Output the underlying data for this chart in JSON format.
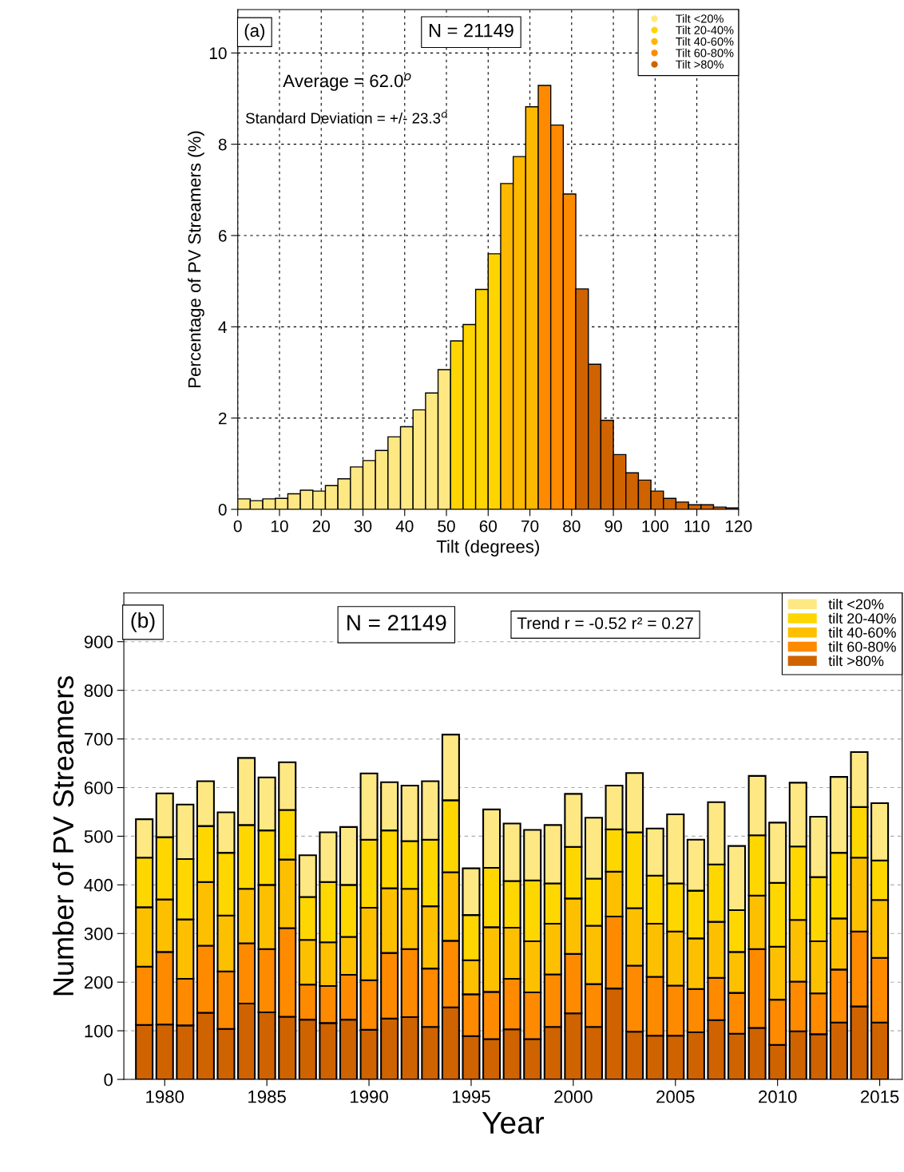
{
  "chart_data": [
    {
      "type": "histogram",
      "xlabel": "Tilt (degrees)",
      "ylabel": "Percentage of PV Streamers (%)",
      "bins": [
        0,
        3,
        6,
        9,
        12,
        15,
        18,
        21,
        24,
        27,
        30,
        33,
        36,
        39,
        42,
        45,
        48,
        51,
        54,
        57,
        60,
        63,
        66,
        69,
        72,
        75,
        78,
        81,
        84,
        87,
        90,
        93,
        96,
        99,
        102,
        105,
        108,
        111,
        114,
        117,
        120
      ],
      "series": [
        {
          "name": "Tilt <20%",
          "color": "#fee883",
          "values": [
            0.23,
            0.19,
            0.23,
            0.24,
            0.34,
            0.42,
            0.4,
            0.52,
            0.67,
            0.93,
            1.07,
            1.29,
            1.59,
            1.81,
            2.18,
            2.55,
            3.06,
            null,
            null,
            null,
            null,
            null,
            null,
            null,
            null,
            null,
            null,
            null,
            null,
            null,
            null,
            null,
            null,
            null,
            null,
            null,
            null,
            null,
            null,
            null
          ]
        },
        {
          "name": "Tilt 20-40%",
          "color": "#fed500",
          "values": [
            null,
            null,
            null,
            null,
            null,
            null,
            null,
            null,
            null,
            null,
            null,
            null,
            null,
            null,
            null,
            null,
            null,
            3.69,
            4.05,
            4.82,
            5.6,
            null,
            null,
            null,
            null,
            null,
            null,
            null,
            null,
            null,
            null,
            null,
            null,
            null,
            null,
            null,
            null,
            null,
            null,
            null
          ]
        },
        {
          "name": "Tilt 40-60%",
          "color": "#fdb800",
          "values": [
            null,
            null,
            null,
            null,
            null,
            null,
            null,
            null,
            null,
            null,
            null,
            null,
            null,
            null,
            null,
            null,
            null,
            null,
            null,
            null,
            null,
            7.14,
            7.73,
            8.82,
            null,
            null,
            null,
            null,
            null,
            null,
            null,
            null,
            null,
            null,
            null,
            null,
            null,
            null,
            null,
            null
          ]
        },
        {
          "name": "Tilt 60-80%",
          "color": "#fe8a00",
          "values": [
            null,
            null,
            null,
            null,
            null,
            null,
            null,
            null,
            null,
            null,
            null,
            null,
            null,
            null,
            null,
            null,
            null,
            null,
            null,
            null,
            null,
            null,
            null,
            null,
            9.29,
            8.42,
            6.91,
            null,
            null,
            null,
            null,
            null,
            null,
            null,
            null,
            null,
            null,
            null,
            null,
            null
          ]
        },
        {
          "name": "Tilt >80%",
          "color": "#cf6300",
          "values": [
            null,
            null,
            null,
            null,
            null,
            null,
            null,
            null,
            null,
            null,
            null,
            null,
            null,
            null,
            null,
            null,
            null,
            null,
            null,
            null,
            null,
            null,
            null,
            null,
            null,
            null,
            null,
            4.83,
            3.18,
            1.95,
            1.2,
            0.8,
            0.64,
            0.4,
            0.24,
            0.16,
            0.1,
            0.1,
            0.05,
            0.03
          ]
        }
      ],
      "xlim": [
        0,
        120
      ],
      "xticks": [
        0,
        10,
        20,
        30,
        40,
        50,
        60,
        70,
        80,
        90,
        100,
        110,
        120
      ],
      "ylim": [
        0,
        10.95
      ],
      "yticks": [
        0,
        2,
        4,
        6,
        8,
        10
      ],
      "grid": true,
      "legend": "top right",
      "annotations": [
        "(a)",
        "N = 21149",
        "Average = 62.0$^{o}$",
        "Standard Deviation = +/- 23.3$^{o}$"
      ]
    },
    {
      "type": "bar",
      "stacked": true,
      "xlabel": "Year",
      "ylabel": "Number of PV Streamers",
      "x": [
        1979,
        1980,
        1981,
        1982,
        1983,
        1984,
        1985,
        1986,
        1987,
        1988,
        1989,
        1990,
        1991,
        1992,
        1993,
        1994,
        1995,
        1996,
        1997,
        1998,
        1999,
        2000,
        2001,
        2002,
        2003,
        2004,
        2005,
        2006,
        2007,
        2008,
        2009,
        2010,
        2011,
        2012,
        2013,
        2014,
        2015
      ],
      "series": [
        {
          "name": "tilt >80%",
          "color": "#cf6300",
          "values": [
            112,
            113,
            111,
            137,
            104,
            156,
            138,
            129,
            123,
            116,
            123,
            102,
            125,
            128,
            108,
            148,
            89,
            83,
            103,
            83,
            108,
            136,
            108,
            187,
            98,
            90,
            90,
            97,
            122,
            94,
            106,
            71,
            99,
            93,
            117,
            150,
            117
          ]
        },
        {
          "name": "tilt 60-80%",
          "color": "#fe8a00",
          "values": [
            120,
            149,
            96,
            138,
            118,
            124,
            130,
            182,
            72,
            76,
            92,
            102,
            135,
            140,
            120,
            137,
            86,
            97,
            104,
            96,
            108,
            122,
            88,
            148,
            136,
            121,
            103,
            89,
            87,
            84,
            162,
            93,
            102,
            84,
            109,
            154,
            133
          ]
        },
        {
          "name": "tilt 40-60%",
          "color": "#fdc000",
          "values": [
            122,
            108,
            122,
            131,
            115,
            112,
            132,
            141,
            92,
            90,
            78,
            149,
            133,
            124,
            128,
            141,
            70,
            133,
            105,
            105,
            104,
            114,
            120,
            92,
            118,
            109,
            111,
            104,
            115,
            84,
            110,
            109,
            127,
            107,
            105,
            152,
            119
          ]
        },
        {
          "name": "tilt 20-40%",
          "color": "#fed700",
          "values": [
            102,
            128,
            124,
            115,
            129,
            131,
            112,
            102,
            88,
            124,
            107,
            140,
            119,
            98,
            137,
            148,
            93,
            122,
            96,
            125,
            83,
            106,
            97,
            87,
            156,
            99,
            99,
            98,
            118,
            86,
            124,
            131,
            151,
            132,
            135,
            104,
            81
          ]
        },
        {
          "name": "tilt <20%",
          "color": "#fee883",
          "values": [
            79,
            90,
            112,
            92,
            83,
            138,
            109,
            98,
            86,
            102,
            119,
            136,
            99,
            114,
            120,
            135,
            96,
            120,
            118,
            104,
            120,
            109,
            125,
            90,
            122,
            97,
            142,
            105,
            128,
            132,
            122,
            124,
            131,
            124,
            156,
            113,
            118
          ]
        }
      ],
      "xlim": [
        1978,
        2016.1
      ],
      "xticks": [
        1980,
        1985,
        1990,
        1995,
        2000,
        2005,
        2010,
        2015
      ],
      "ylim": [
        0,
        1000
      ],
      "yticks": [
        0,
        100,
        200,
        300,
        400,
        500,
        600,
        700,
        800,
        900
      ],
      "grid": "y",
      "legend": "top right",
      "annotations": [
        "(b)",
        "N = 21149",
        "Trend r = -0.52 r² = 0.27"
      ]
    }
  ]
}
